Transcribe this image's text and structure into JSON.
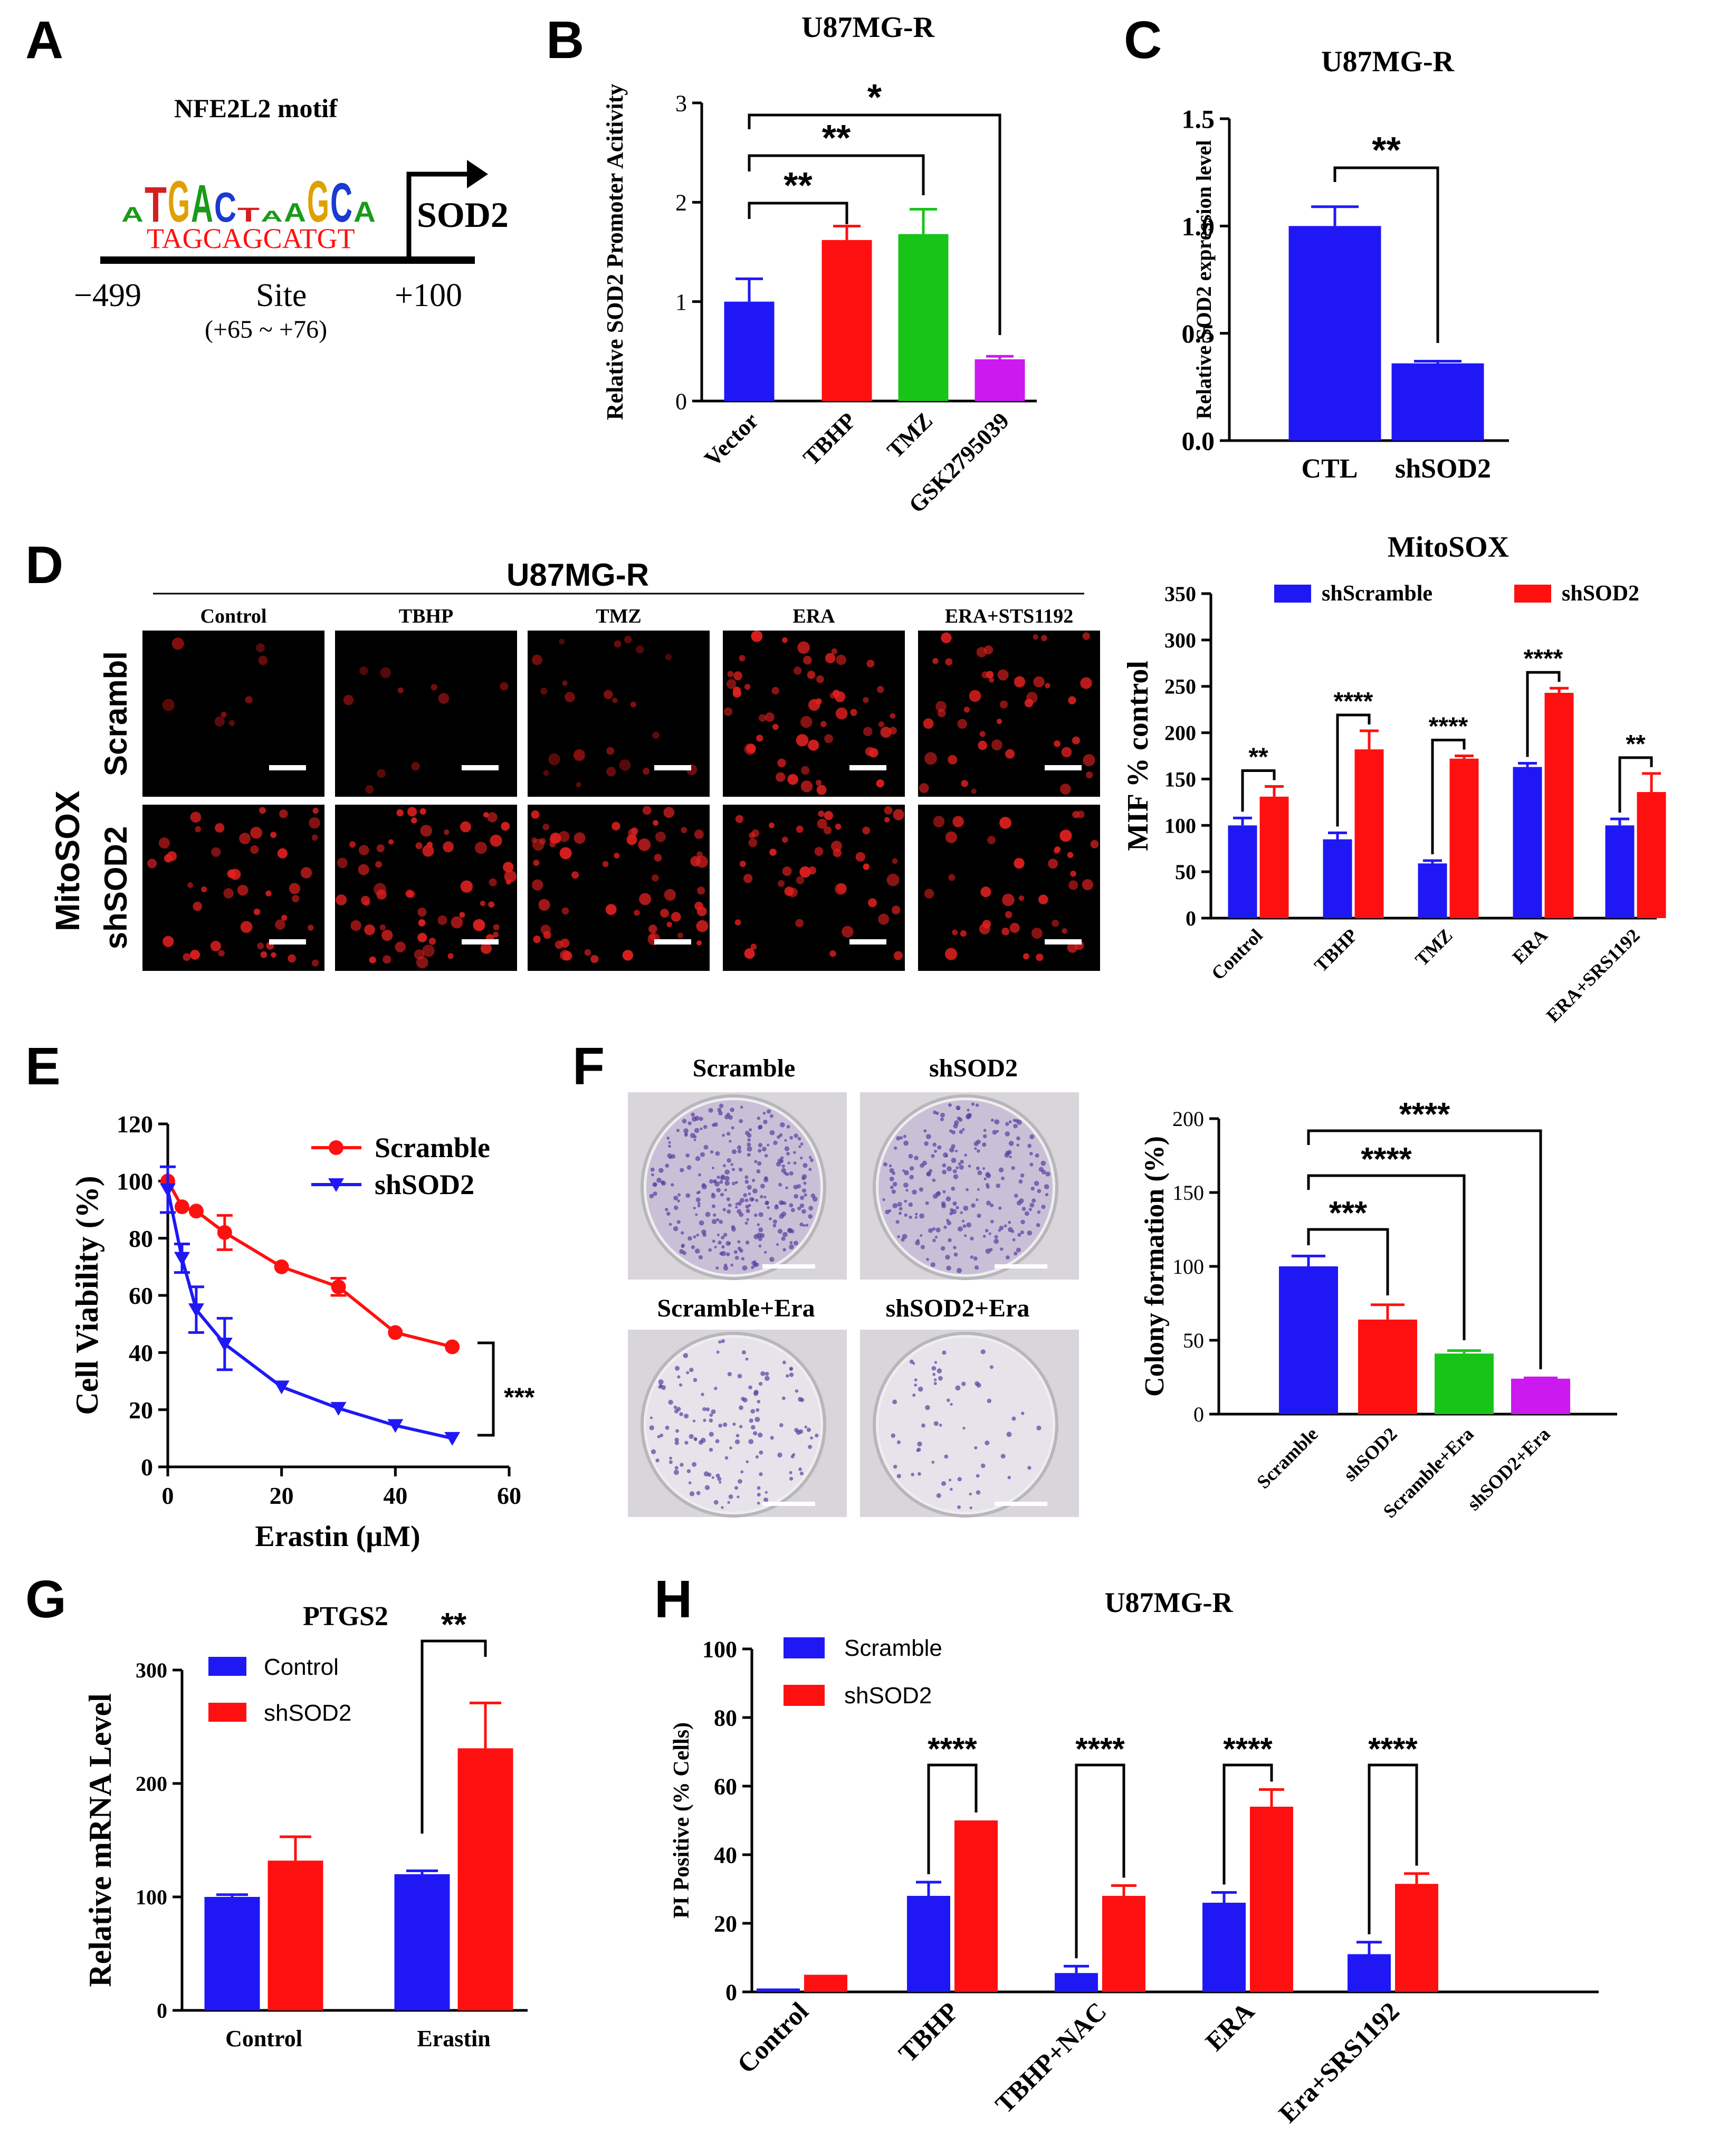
{
  "panels": {
    "A": "A",
    "B": "B",
    "C": "C",
    "D": "D",
    "E": "E",
    "F": "F",
    "G": "G",
    "H": "H"
  },
  "colors": {
    "blue": "#1f18f5",
    "red": "#ff1010",
    "green": "#19c419",
    "magenta": "#cc19f0",
    "black": "#000000"
  },
  "panel_a": {
    "motif_title": "NFE2L2 motif",
    "logo_letters": [
      "A",
      "T",
      "G",
      "A",
      "C",
      "T",
      "A",
      "A",
      "G",
      "C",
      "A"
    ],
    "sequence": "TAGCAGCATGT",
    "gene": "SOD2",
    "left_pos": "−499",
    "site_label": "Site",
    "site_range": "(+65 ~ +76)",
    "right_pos": "+100"
  },
  "panel_d_images": {
    "group_title": "U87MG-R",
    "columns": [
      "Control",
      "TBHP",
      "TMZ",
      "ERA",
      "ERA+STS1192"
    ],
    "rows": [
      "Scrambl",
      "shSOD2"
    ],
    "side_label": "MitoSOX"
  },
  "panel_f_images": {
    "labels": [
      "Scramble",
      "shSOD2",
      "Scramble+Era",
      "shSOD2+Era"
    ]
  },
  "chart_data": [
    {
      "id": "B",
      "type": "bar",
      "title": "U87MG-R",
      "ylabel": "Relative SOD2 Promoter Acitivity",
      "categories": [
        "Vector",
        "TBHP",
        "TMZ",
        "GSK2795039"
      ],
      "values": [
        1.0,
        1.62,
        1.68,
        0.42
      ],
      "errors": [
        0.23,
        0.14,
        0.25,
        0.03
      ],
      "colors": [
        "#1f18f5",
        "#ff1010",
        "#19c419",
        "#cc19f0"
      ],
      "ylim": [
        0,
        3
      ],
      "yticks": [
        0,
        1,
        2,
        3
      ],
      "significance": [
        {
          "from": 0,
          "to": 1,
          "label": "**"
        },
        {
          "from": 0,
          "to": 2,
          "label": "**"
        },
        {
          "from": 0,
          "to": 3,
          "label": "*"
        }
      ]
    },
    {
      "id": "C",
      "type": "bar",
      "title": "U87MG-R",
      "ylabel": "Relative SOD2 expression level",
      "categories": [
        "CTL",
        "shSOD2"
      ],
      "values": [
        1.0,
        0.36
      ],
      "errors": [
        0.09,
        0.01
      ],
      "colors": [
        "#1f18f5",
        "#1f18f5"
      ],
      "ylim": [
        0,
        1.5
      ],
      "yticks": [
        "0.0",
        "0.5",
        "1.0",
        "1.5"
      ],
      "significance": [
        {
          "from": 0,
          "to": 1,
          "label": "**"
        }
      ]
    },
    {
      "id": "D",
      "type": "bar",
      "title": "MitoSOX",
      "ylabel": "MIF % control",
      "categories": [
        "Control",
        "TBHP",
        "TMZ",
        "ERA",
        "ERA+SRS1192"
      ],
      "series": [
        {
          "name": "shScramble",
          "color": "#1f18f5",
          "values": [
            100,
            85,
            59,
            163,
            100
          ],
          "errors": [
            8,
            7,
            3,
            4,
            7
          ]
        },
        {
          "name": "shSOD2",
          "color": "#ff1010",
          "values": [
            131,
            182,
            172,
            243,
            136
          ],
          "errors": [
            11,
            20,
            3,
            5,
            20
          ]
        }
      ],
      "ylim": [
        0,
        350
      ],
      "yticks": [
        0,
        50,
        100,
        150,
        200,
        250,
        300,
        350
      ],
      "significance": [
        "**",
        "****",
        "****",
        "****",
        "**"
      ]
    },
    {
      "id": "E",
      "type": "line",
      "xlabel": "Erastin (μM)",
      "ylabel": "Cell Viability (%)",
      "xlim": [
        0,
        60
      ],
      "xticks": [
        0,
        20,
        40,
        60
      ],
      "ylim": [
        0,
        120
      ],
      "yticks": [
        0,
        20,
        40,
        60,
        80,
        100,
        120
      ],
      "series": [
        {
          "name": "Scramble",
          "color": "#ff1010",
          "marker": "circle",
          "x": [
            0,
            2.5,
            5,
            10,
            20,
            30,
            40,
            50
          ],
          "y": [
            100,
            91,
            89.5,
            82,
            70,
            63,
            47,
            42
          ],
          "err": [
            0,
            0,
            0,
            6,
            0,
            3,
            0,
            0
          ]
        },
        {
          "name": "shSOD2",
          "color": "#1f18f5",
          "marker": "triangle-down",
          "x": [
            0,
            2.5,
            5,
            10,
            20,
            30,
            40,
            50
          ],
          "y": [
            97,
            73,
            55,
            43,
            28,
            20.5,
            14.5,
            10
          ],
          "err": [
            8,
            5,
            8,
            9,
            0,
            0,
            0,
            0
          ]
        }
      ],
      "significance": "***"
    },
    {
      "id": "F",
      "type": "bar",
      "ylabel": "Colony formation (%)",
      "categories": [
        "Scramble",
        "shSOD2",
        "Scramble+Era",
        "shSOD2+Era"
      ],
      "values": [
        100,
        64,
        41,
        24
      ],
      "errors": [
        7,
        10,
        2,
        0.5
      ],
      "colors": [
        "#1f18f5",
        "#ff1010",
        "#19c419",
        "#cc19f0"
      ],
      "ylim": [
        0,
        200
      ],
      "yticks": [
        0,
        50,
        100,
        150,
        200
      ],
      "significance": [
        {
          "from": 0,
          "to": 1,
          "label": "***"
        },
        {
          "from": 0,
          "to": 2,
          "label": "****"
        },
        {
          "from": 0,
          "to": 3,
          "label": "****"
        }
      ]
    },
    {
      "id": "G",
      "type": "bar",
      "title": "PTGS2",
      "ylabel": "Relative mRNA Level",
      "categories": [
        "Control",
        "Erastin"
      ],
      "series": [
        {
          "name": "Control",
          "color": "#1f18f5",
          "values": [
            100,
            120
          ],
          "errors": [
            2,
            3
          ]
        },
        {
          "name": "shSOD2",
          "color": "#ff1010",
          "values": [
            132,
            231
          ],
          "errors": [
            21,
            40
          ]
        }
      ],
      "ylim": [
        0,
        300
      ],
      "yticks": [
        0,
        100,
        200,
        300
      ],
      "significance": [
        "",
        "**"
      ]
    },
    {
      "id": "H",
      "type": "bar",
      "title": "U87MG-R",
      "ylabel": "PI Positive (% Cells)",
      "categories": [
        "Control",
        "TBHP",
        "TBHP+NAC",
        "ERA",
        "Era+SRS1192"
      ],
      "series": [
        {
          "name": "Scramble",
          "color": "#1f18f5",
          "values": [
            1,
            28,
            5.5,
            26,
            11
          ],
          "errors": [
            0,
            4,
            2,
            3,
            3.5
          ]
        },
        {
          "name": "shSOD2",
          "color": "#ff1010",
          "values": [
            5,
            50,
            28,
            54,
            31.5
          ],
          "errors": [
            0,
            0,
            3,
            5,
            3
          ]
        }
      ],
      "ylim": [
        0,
        100
      ],
      "yticks": [
        0,
        20,
        40,
        60,
        80,
        100
      ],
      "significance": [
        "",
        "****",
        "****",
        "****",
        "****"
      ]
    }
  ]
}
